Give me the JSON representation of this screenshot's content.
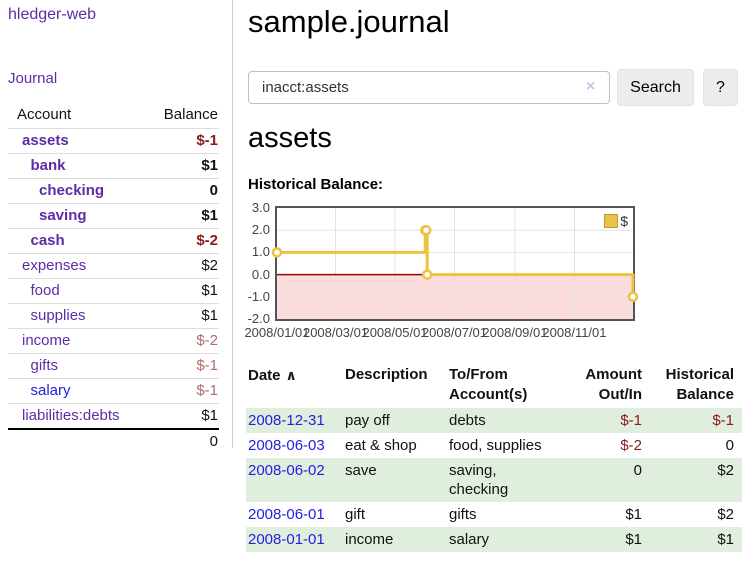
{
  "app": {
    "title": "hledger-web"
  },
  "colors": {
    "accent_purple": "#5e2ca5",
    "link_blue": "#2222dd",
    "negative": "#8b1a1a",
    "negative_muted": "#b36b6b",
    "row_stripe_green": "#dfeedd",
    "chart_line_gold": "#edc240",
    "chart_negative_fill": "#fbdddd",
    "chart_zero_line": "#990000"
  },
  "sidebar": {
    "journal_link": "Journal",
    "accounts": {
      "headers": [
        "Account",
        "Balance"
      ],
      "rows": [
        {
          "account": "assets",
          "balance": "$-1",
          "indent": 0,
          "bold": true,
          "balance_color": "negative"
        },
        {
          "account": "bank",
          "balance": "$1",
          "indent": 1,
          "bold": true
        },
        {
          "account": "checking",
          "balance": "0",
          "indent": 2,
          "bold": true
        },
        {
          "account": "saving",
          "balance": "$1",
          "indent": 2,
          "bold": true
        },
        {
          "account": "cash",
          "balance": "$-2",
          "indent": 1,
          "bold": true,
          "balance_color": "negative"
        },
        {
          "account": "expenses",
          "balance": "$2",
          "indent": 0
        },
        {
          "account": "food",
          "balance": "$1",
          "indent": 1
        },
        {
          "account": "supplies",
          "balance": "$1",
          "indent": 1
        },
        {
          "account": "income",
          "balance": "$-2",
          "indent": 0,
          "balance_color": "negative-muted"
        },
        {
          "account": "gifts",
          "balance": "$-1",
          "indent": 1,
          "balance_color": "negative-muted"
        },
        {
          "account": "salary",
          "balance": "$-1",
          "indent": 1,
          "link_color": "blue",
          "balance_color": "negative-muted"
        },
        {
          "account": "liabilities:debts",
          "balance": "$1",
          "indent": 0
        }
      ],
      "total": "0"
    }
  },
  "main": {
    "title": "sample.journal",
    "search": {
      "value": "inacct:assets",
      "clear_icon": "×",
      "button_label": "Search",
      "help_label": "?"
    },
    "account_heading": "assets",
    "chart_label": "Historical Balance:"
  },
  "chart_data": {
    "type": "line",
    "title": "Historical Balance:",
    "legend": "$",
    "legend_position": "top-right",
    "grid": true,
    "ylim": [
      -2,
      3
    ],
    "x_range": [
      "2008-01-01",
      "2008-12-31"
    ],
    "y_ticks": [
      {
        "value": 3,
        "label": "3.0"
      },
      {
        "value": 2,
        "label": "2.0"
      },
      {
        "value": 1,
        "label": "1.0"
      },
      {
        "value": 0,
        "label": "0.0"
      },
      {
        "value": -1,
        "label": "-1.0"
      },
      {
        "value": -2,
        "label": "-2.0"
      }
    ],
    "x_ticks": [
      {
        "date": "2008-01-01",
        "label": "2008/01/01"
      },
      {
        "date": "2008-03-01",
        "label": "2008/03/01"
      },
      {
        "date": "2008-05-01",
        "label": "2008/05/01"
      },
      {
        "date": "2008-07-01",
        "label": "2008/07/01"
      },
      {
        "date": "2008-09-01",
        "label": "2008/09/01"
      },
      {
        "date": "2008-11-01",
        "label": "2008/11/01"
      }
    ],
    "series": [
      {
        "name": "$",
        "color": "#edc240",
        "style": "step-after",
        "points": [
          {
            "date": "2008-01-01",
            "value": 1
          },
          {
            "date": "2008-06-01",
            "value": 2
          },
          {
            "date": "2008-06-02",
            "value": 2
          },
          {
            "date": "2008-06-03",
            "value": 0
          },
          {
            "date": "2008-12-31",
            "value": -1
          }
        ]
      }
    ]
  },
  "register": {
    "headers": {
      "date": "Date",
      "sort_icon": "∧",
      "description": "Description",
      "accounts": "To/From Account(s)",
      "amount": "Amount Out/In",
      "balance": "Historical Balance"
    },
    "rows": [
      {
        "date": "2008-12-31",
        "description": "pay off",
        "accounts": "debts",
        "amount": "$-1",
        "balance": "$-1",
        "shaded": true
      },
      {
        "date": "2008-06-03",
        "description": "eat & shop",
        "accounts": "food, supplies",
        "amount": "$-2",
        "balance": "0",
        "shaded": false
      },
      {
        "date": "2008-06-02",
        "description": "save",
        "accounts": "saving, checking",
        "amount": "0",
        "balance": "$2",
        "shaded": true
      },
      {
        "date": "2008-06-01",
        "description": "gift",
        "accounts": "gifts",
        "amount": "$1",
        "balance": "$2",
        "shaded": false
      },
      {
        "date": "2008-01-01",
        "description": "income",
        "accounts": "salary",
        "amount": "$1",
        "balance": "$1",
        "shaded": true
      }
    ]
  }
}
